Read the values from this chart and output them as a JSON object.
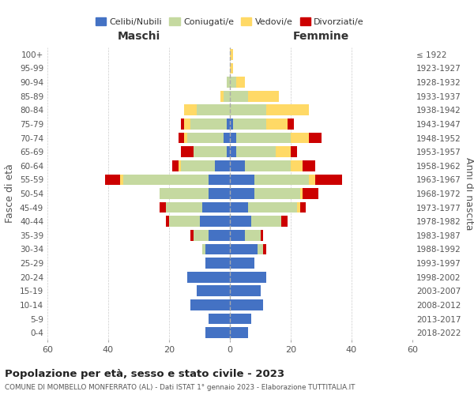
{
  "age_groups": [
    "0-4",
    "5-9",
    "10-14",
    "15-19",
    "20-24",
    "25-29",
    "30-34",
    "35-39",
    "40-44",
    "45-49",
    "50-54",
    "55-59",
    "60-64",
    "65-69",
    "70-74",
    "75-79",
    "80-84",
    "85-89",
    "90-94",
    "95-99",
    "100+"
  ],
  "birth_years": [
    "2018-2022",
    "2013-2017",
    "2008-2012",
    "2003-2007",
    "1998-2002",
    "1993-1997",
    "1988-1992",
    "1983-1987",
    "1978-1982",
    "1973-1977",
    "1968-1972",
    "1963-1967",
    "1958-1962",
    "1953-1957",
    "1948-1952",
    "1943-1947",
    "1938-1942",
    "1933-1937",
    "1928-1932",
    "1923-1927",
    "≤ 1922"
  ],
  "male": {
    "celibe": [
      8,
      7,
      13,
      11,
      14,
      8,
      8,
      7,
      10,
      9,
      7,
      7,
      5,
      1,
      2,
      1,
      0,
      0,
      0,
      0,
      0
    ],
    "coniugato": [
      0,
      0,
      0,
      0,
      0,
      0,
      1,
      5,
      10,
      12,
      16,
      28,
      11,
      11,
      12,
      12,
      11,
      2,
      1,
      0,
      0
    ],
    "vedovo": [
      0,
      0,
      0,
      0,
      0,
      0,
      0,
      0,
      0,
      0,
      0,
      1,
      1,
      0,
      1,
      2,
      4,
      1,
      0,
      0,
      0
    ],
    "divorziato": [
      0,
      0,
      0,
      0,
      0,
      0,
      0,
      1,
      1,
      2,
      0,
      5,
      2,
      4,
      2,
      1,
      0,
      0,
      0,
      0,
      0
    ]
  },
  "female": {
    "nubile": [
      6,
      7,
      11,
      10,
      12,
      8,
      9,
      5,
      7,
      6,
      8,
      8,
      5,
      2,
      2,
      1,
      0,
      0,
      0,
      0,
      0
    ],
    "coniugata": [
      0,
      0,
      0,
      0,
      0,
      0,
      2,
      5,
      10,
      16,
      15,
      18,
      15,
      13,
      18,
      11,
      12,
      6,
      2,
      0,
      0
    ],
    "vedova": [
      0,
      0,
      0,
      0,
      0,
      0,
      0,
      0,
      0,
      1,
      1,
      2,
      4,
      5,
      6,
      7,
      14,
      10,
      3,
      1,
      1
    ],
    "divorziata": [
      0,
      0,
      0,
      0,
      0,
      0,
      1,
      1,
      2,
      2,
      5,
      9,
      4,
      2,
      4,
      2,
      0,
      0,
      0,
      0,
      0
    ]
  },
  "colors": {
    "celibe": "#4472C4",
    "coniugato": "#c5d9a0",
    "vedovo": "#FFD966",
    "divorziato": "#CC0000"
  },
  "xlim": 60,
  "title": "Popolazione per età, sesso e stato civile - 2023",
  "subtitle": "COMUNE DI MOMBELLO MONFERRATO (AL) - Dati ISTAT 1° gennaio 2023 - Elaborazione TUTTITALIA.IT",
  "ylabel_left": "Fasce di età",
  "ylabel_right": "Anni di nascita",
  "xlabel_left": "Maschi",
  "xlabel_right": "Femmine"
}
